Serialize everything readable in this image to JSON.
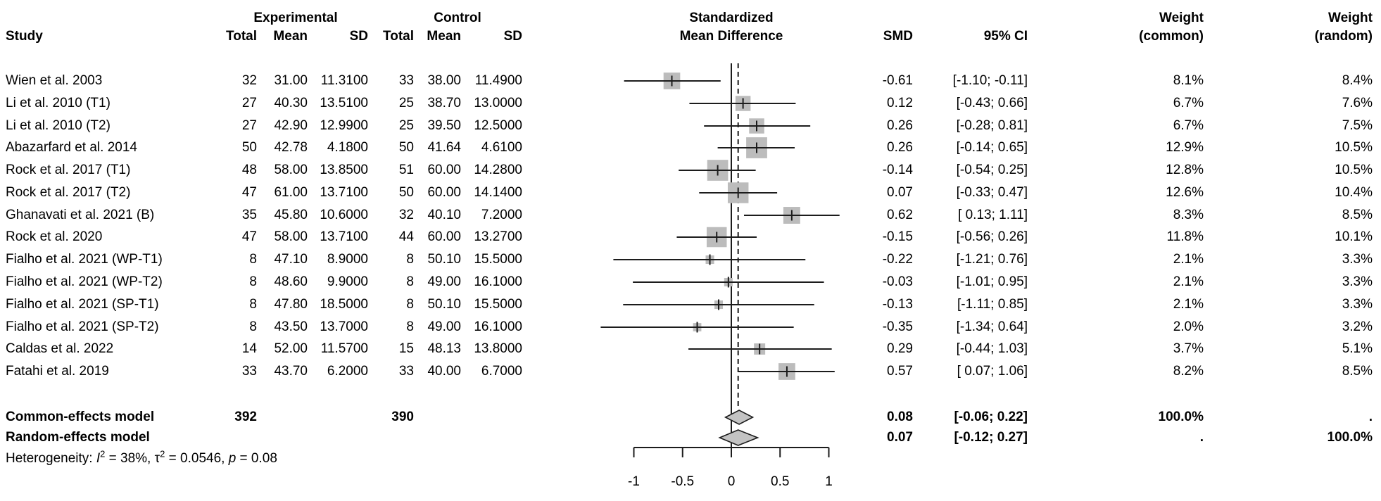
{
  "header": {
    "study": "Study",
    "experimental": "Experimental",
    "control": "Control",
    "total": "Total",
    "mean": "Mean",
    "sd": "SD",
    "std_line1": "Standardized",
    "std_line2": "Mean Difference",
    "smd": "SMD",
    "ci": "95% CI",
    "weight": "Weight",
    "weight_common": "(common)",
    "weight_random": "(random)"
  },
  "chart_data": {
    "type": "forest",
    "effect_measure": "Standardized Mean Difference",
    "axis": {
      "range": [
        -1,
        1
      ],
      "ticks": [
        -1,
        -0.5,
        0,
        0.5,
        1
      ],
      "tick_labels": [
        "-1",
        "-0.5",
        "0",
        "0.5",
        "1"
      ]
    },
    "zero_line": 0,
    "studies": [
      {
        "label": "Wien et al. 2003",
        "exp": {
          "total": "32",
          "mean": "31.00",
          "sd": "11.3100"
        },
        "ctrl": {
          "total": "33",
          "mean": "38.00",
          "sd": "11.4900"
        },
        "smd": -0.61,
        "smd_text": "-0.61",
        "ci_lo": -1.1,
        "ci_hi": -0.11,
        "ci_text": "[-1.10; -0.11]",
        "w_common": 8.1,
        "w_common_text": "8.1%",
        "w_random_text": "8.4%"
      },
      {
        "label": "Li et al. 2010 (T1)",
        "exp": {
          "total": "27",
          "mean": "40.30",
          "sd": "13.5100"
        },
        "ctrl": {
          "total": "25",
          "mean": "38.70",
          "sd": "13.0000"
        },
        "smd": 0.12,
        "smd_text": "0.12",
        "ci_lo": -0.43,
        "ci_hi": 0.66,
        "ci_text": "[-0.43; 0.66]",
        "w_common": 6.7,
        "w_common_text": "6.7%",
        "w_random_text": "7.6%"
      },
      {
        "label": "Li et al. 2010 (T2)",
        "exp": {
          "total": "27",
          "mean": "42.90",
          "sd": "12.9900"
        },
        "ctrl": {
          "total": "25",
          "mean": "39.50",
          "sd": "12.5000"
        },
        "smd": 0.26,
        "smd_text": "0.26",
        "ci_lo": -0.28,
        "ci_hi": 0.81,
        "ci_text": "[-0.28; 0.81]",
        "w_common": 6.7,
        "w_common_text": "6.7%",
        "w_random_text": "7.5%"
      },
      {
        "label": "Abazarfard et al. 2014",
        "exp": {
          "total": "50",
          "mean": "42.78",
          "sd": "4.1800"
        },
        "ctrl": {
          "total": "50",
          "mean": "41.64",
          "sd": "4.6100"
        },
        "smd": 0.26,
        "smd_text": "0.26",
        "ci_lo": -0.14,
        "ci_hi": 0.65,
        "ci_text": "[-0.14; 0.65]",
        "w_common": 12.9,
        "w_common_text": "12.9%",
        "w_random_text": "10.5%"
      },
      {
        "label": "Rock et al. 2017 (T1)",
        "exp": {
          "total": "48",
          "mean": "58.00",
          "sd": "13.8500"
        },
        "ctrl": {
          "total": "51",
          "mean": "60.00",
          "sd": "14.2800"
        },
        "smd": -0.14,
        "smd_text": "-0.14",
        "ci_lo": -0.54,
        "ci_hi": 0.25,
        "ci_text": "[-0.54; 0.25]",
        "w_common": 12.8,
        "w_common_text": "12.8%",
        "w_random_text": "10.5%"
      },
      {
        "label": "Rock et al. 2017 (T2)",
        "exp": {
          "total": "47",
          "mean": "61.00",
          "sd": "13.7100"
        },
        "ctrl": {
          "total": "50",
          "mean": "60.00",
          "sd": "14.1400"
        },
        "smd": 0.07,
        "smd_text": "0.07",
        "ci_lo": -0.33,
        "ci_hi": 0.47,
        "ci_text": "[-0.33; 0.47]",
        "w_common": 12.6,
        "w_common_text": "12.6%",
        "w_random_text": "10.4%"
      },
      {
        "label": "Ghanavati et al. 2021 (B)",
        "exp": {
          "total": "35",
          "mean": "45.80",
          "sd": "10.6000"
        },
        "ctrl": {
          "total": "32",
          "mean": "40.10",
          "sd": "7.2000"
        },
        "smd": 0.62,
        "smd_text": "0.62",
        "ci_lo": 0.13,
        "ci_hi": 1.11,
        "ci_text": "[ 0.13; 1.11]",
        "w_common": 8.3,
        "w_common_text": "8.3%",
        "w_random_text": "8.5%"
      },
      {
        "label": "Rock et al. 2020",
        "exp": {
          "total": "47",
          "mean": "58.00",
          "sd": "13.7100"
        },
        "ctrl": {
          "total": "44",
          "mean": "60.00",
          "sd": "13.2700"
        },
        "smd": -0.15,
        "smd_text": "-0.15",
        "ci_lo": -0.56,
        "ci_hi": 0.26,
        "ci_text": "[-0.56; 0.26]",
        "w_common": 11.8,
        "w_common_text": "11.8%",
        "w_random_text": "10.1%"
      },
      {
        "label": "Fialho et al. 2021 (WP-T1)",
        "exp": {
          "total": "8",
          "mean": "47.10",
          "sd": "8.9000"
        },
        "ctrl": {
          "total": "8",
          "mean": "50.10",
          "sd": "15.5000"
        },
        "smd": -0.22,
        "smd_text": "-0.22",
        "ci_lo": -1.21,
        "ci_hi": 0.76,
        "ci_text": "[-1.21; 0.76]",
        "w_common": 2.1,
        "w_common_text": "2.1%",
        "w_random_text": "3.3%"
      },
      {
        "label": "Fialho et al. 2021 (WP-T2)",
        "exp": {
          "total": "8",
          "mean": "48.60",
          "sd": "9.9000"
        },
        "ctrl": {
          "total": "8",
          "mean": "49.00",
          "sd": "16.1000"
        },
        "smd": -0.03,
        "smd_text": "-0.03",
        "ci_lo": -1.01,
        "ci_hi": 0.95,
        "ci_text": "[-1.01; 0.95]",
        "w_common": 2.1,
        "w_common_text": "2.1%",
        "w_random_text": "3.3%"
      },
      {
        "label": "Fialho et al. 2021 (SP-T1)",
        "exp": {
          "total": "8",
          "mean": "47.80",
          "sd": "18.5000"
        },
        "ctrl": {
          "total": "8",
          "mean": "50.10",
          "sd": "15.5000"
        },
        "smd": -0.13,
        "smd_text": "-0.13",
        "ci_lo": -1.11,
        "ci_hi": 0.85,
        "ci_text": "[-1.11; 0.85]",
        "w_common": 2.1,
        "w_common_text": "2.1%",
        "w_random_text": "3.3%"
      },
      {
        "label": "Fialho et al. 2021 (SP-T2)",
        "exp": {
          "total": "8",
          "mean": "43.50",
          "sd": "13.7000"
        },
        "ctrl": {
          "total": "8",
          "mean": "49.00",
          "sd": "16.1000"
        },
        "smd": -0.35,
        "smd_text": "-0.35",
        "ci_lo": -1.34,
        "ci_hi": 0.64,
        "ci_text": "[-1.34; 0.64]",
        "w_common": 2.0,
        "w_common_text": "2.0%",
        "w_random_text": "3.2%"
      },
      {
        "label": "Caldas et al. 2022",
        "exp": {
          "total": "14",
          "mean": "52.00",
          "sd": "11.5700"
        },
        "ctrl": {
          "total": "15",
          "mean": "48.13",
          "sd": "13.8000"
        },
        "smd": 0.29,
        "smd_text": "0.29",
        "ci_lo": -0.44,
        "ci_hi": 1.03,
        "ci_text": "[-0.44; 1.03]",
        "w_common": 3.7,
        "w_common_text": "3.7%",
        "w_random_text": "5.1%"
      },
      {
        "label": "Fatahi et al. 2019",
        "exp": {
          "total": "33",
          "mean": "43.70",
          "sd": "6.2000"
        },
        "ctrl": {
          "total": "33",
          "mean": "40.00",
          "sd": "6.7000"
        },
        "smd": 0.57,
        "smd_text": "0.57",
        "ci_lo": 0.07,
        "ci_hi": 1.06,
        "ci_text": "[ 0.07; 1.06]",
        "w_common": 8.2,
        "w_common_text": "8.2%",
        "w_random_text": "8.5%"
      }
    ],
    "common_effects": {
      "label": "Common-effects model",
      "total_exp": "392",
      "total_ctrl": "390",
      "smd": 0.08,
      "smd_text": "0.08",
      "ci_lo": -0.06,
      "ci_hi": 0.22,
      "ci_text": "[-0.06; 0.22]",
      "w_common": "100.0%",
      "w_random": "."
    },
    "random_effects": {
      "label": "Random-effects model",
      "smd": 0.07,
      "smd_text": "0.07",
      "ci_lo": -0.12,
      "ci_hi": 0.27,
      "ci_text": "[-0.12; 0.27]",
      "w_common": ".",
      "w_random": "100.0%"
    },
    "heterogeneity": {
      "prefix": "Heterogeneity: ",
      "i": "I",
      "sup": "2",
      "i_rest": " = 38%, ",
      "tau": "τ",
      "tau_rest": " = 0.0546, ",
      "p": "p",
      "p_rest": " = 0.08"
    }
  },
  "colors": {
    "square": "#bcbcbc",
    "diamond": "#c3c3c3",
    "line": "#1c1c1c",
    "text": "#000000",
    "background": "#ffffff"
  }
}
